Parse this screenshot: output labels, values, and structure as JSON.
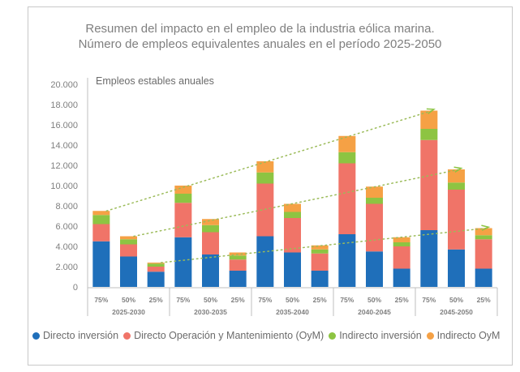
{
  "chart_data": {
    "type": "bar",
    "stacked": true,
    "title": "Resumen del impacto en el empleo de la industria eólica marina.",
    "subtitle": "Número de empleos equivalentes anuales en el período 2025-2050",
    "ylabel": "Empleos estables anuales",
    "xlabel": "",
    "ylim": [
      0,
      20000
    ],
    "yticks": [
      0,
      2000,
      4000,
      6000,
      8000,
      10000,
      12000,
      14000,
      16000,
      18000,
      20000
    ],
    "ytick_labels": [
      "0",
      "2.000",
      "4.000",
      "6.000",
      "8.000",
      "10.000",
      "12.000",
      "14.000",
      "16.000",
      "18.000",
      "20.000"
    ],
    "grid": false,
    "legend_position": "bottom",
    "groups": [
      "2025-2030",
      "2030-2035",
      "2035-2040",
      "2040-2045",
      "2045-2050"
    ],
    "subcategories": [
      "75%",
      "50%",
      "25%"
    ],
    "categories": [
      "2025-2030 75%",
      "2025-2030 50%",
      "2025-2030 25%",
      "2030-2035 75%",
      "2030-2035 50%",
      "2030-2035 25%",
      "2035-2040 75%",
      "2035-2040 50%",
      "2035-2040 25%",
      "2040-2045 75%",
      "2040-2045 50%",
      "2040-2045 25%",
      "2045-2050 75%",
      "2045-2050 50%",
      "2045-2050 25%"
    ],
    "series": [
      {
        "name": "Directo inversión",
        "color": "#1f6fba",
        "values": [
          4500,
          3000,
          1500,
          4900,
          3200,
          1600,
          5000,
          3400,
          1600,
          5200,
          3500,
          1800,
          5600,
          3700,
          1800
        ]
      },
      {
        "name": "Directo Operación y Mantenimiento (OyM)",
        "color": "#f07468",
        "values": [
          1700,
          1200,
          500,
          3400,
          2200,
          1100,
          5200,
          3400,
          1700,
          7000,
          4700,
          2200,
          8900,
          5900,
          2900
        ]
      },
      {
        "name": "Indirecto inversión",
        "color": "#8dc442",
        "values": [
          900,
          500,
          300,
          900,
          700,
          400,
          1100,
          600,
          400,
          1100,
          600,
          400,
          1100,
          700,
          400
        ]
      },
      {
        "name": "Indirecto OyM",
        "color": "#f5a145",
        "values": [
          400,
          300,
          100,
          800,
          600,
          300,
          1100,
          800,
          400,
          1600,
          1100,
          500,
          1800,
          1300,
          700
        ]
      }
    ],
    "trend_lines": {
      "style": "dotted",
      "color": "#9bbb59",
      "description": "Dotted arrows connecting bar totals of each scenario (75%, 50%, 25%) across periods"
    }
  }
}
